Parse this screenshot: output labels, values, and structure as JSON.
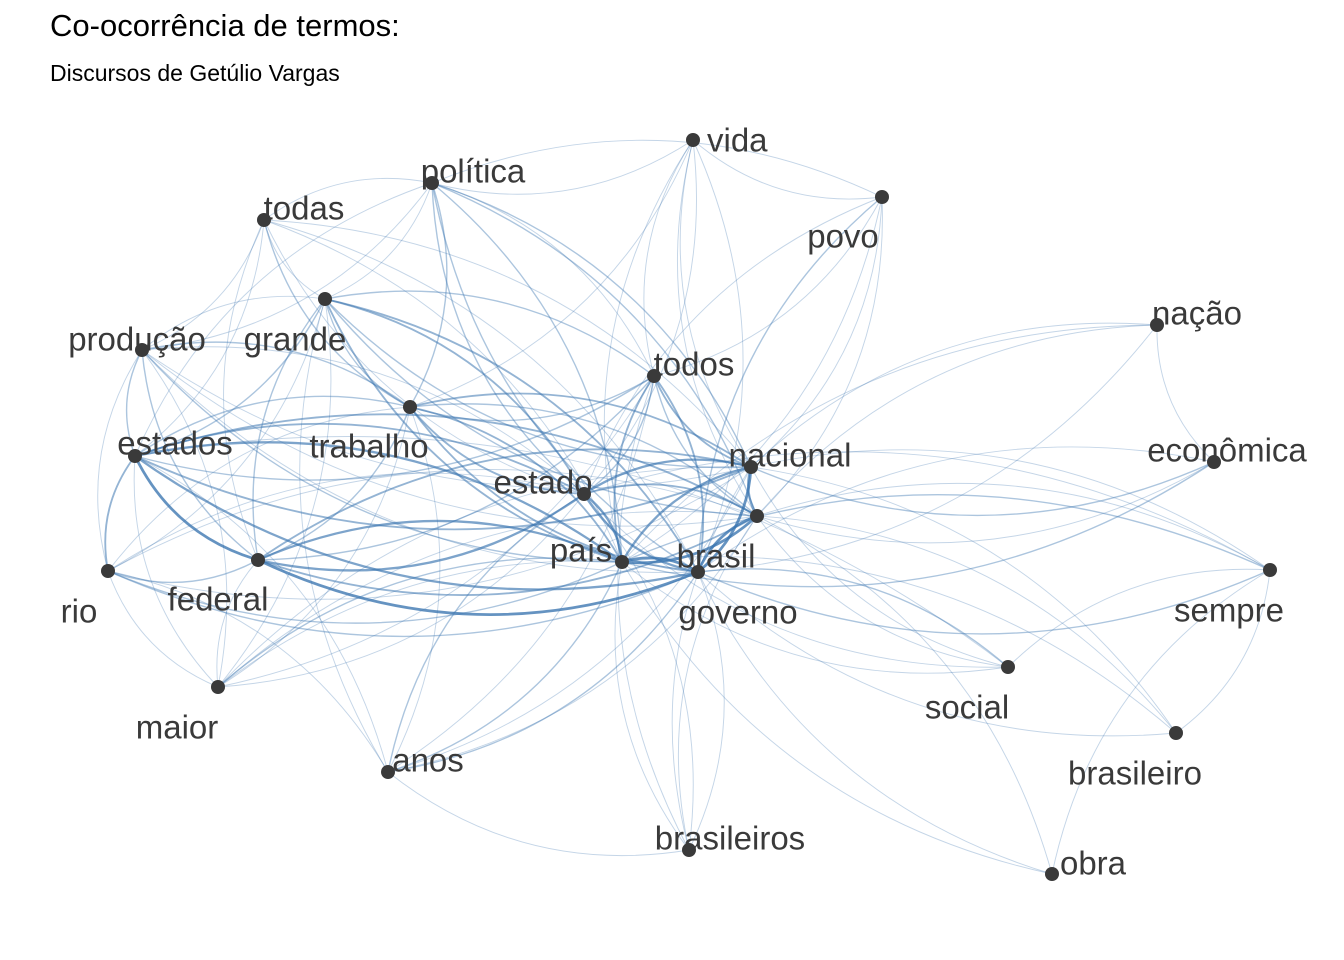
{
  "title": "Co-ocorrência de termos:",
  "subtitle": "Discursos de Getúlio Vargas",
  "edge_color": "#3a75b0",
  "node_color": "#3a3a3a",
  "nodes": [
    {
      "id": "vida",
      "label": "vida"
    },
    {
      "id": "povo",
      "label": "povo"
    },
    {
      "id": "politica",
      "label": "política"
    },
    {
      "id": "todas",
      "label": "todas"
    },
    {
      "id": "nacao",
      "label": "nação"
    },
    {
      "id": "producao",
      "label": "produção"
    },
    {
      "id": "grande",
      "label": "grande"
    },
    {
      "id": "todos",
      "label": "todos"
    },
    {
      "id": "estados",
      "label": "estados"
    },
    {
      "id": "trabalho",
      "label": "trabalho"
    },
    {
      "id": "nacional",
      "label": "nacional"
    },
    {
      "id": "economica",
      "label": "econômica"
    },
    {
      "id": "estado",
      "label": "estado"
    },
    {
      "id": "pais",
      "label": "país"
    },
    {
      "id": "brasil",
      "label": "brasil"
    },
    {
      "id": "rio",
      "label": "rio"
    },
    {
      "id": "federal",
      "label": "federal"
    },
    {
      "id": "governo",
      "label": "governo"
    },
    {
      "id": "sempre",
      "label": "sempre"
    },
    {
      "id": "social",
      "label": "social"
    },
    {
      "id": "maior",
      "label": "maior"
    },
    {
      "id": "anos",
      "label": "anos"
    },
    {
      "id": "brasileiro",
      "label": "brasileiro"
    },
    {
      "id": "brasileiros",
      "label": "brasileiros"
    },
    {
      "id": "obra",
      "label": "obra"
    }
  ],
  "edges": [
    [
      "estados",
      "federal",
      5
    ],
    [
      "estados",
      "pais",
      4
    ],
    [
      "estados",
      "governo",
      4
    ],
    [
      "estados",
      "estado",
      3
    ],
    [
      "estados",
      "nacional",
      3
    ],
    [
      "estados",
      "brasil",
      3
    ],
    [
      "estados",
      "rio",
      3
    ],
    [
      "estados",
      "trabalho",
      2
    ],
    [
      "estados",
      "grande",
      2
    ],
    [
      "estados",
      "producao",
      2
    ],
    [
      "estados",
      "todas",
      1
    ],
    [
      "estados",
      "politica",
      1
    ],
    [
      "estados",
      "maior",
      1
    ],
    [
      "estados",
      "anos",
      1
    ],
    [
      "estados",
      "todos",
      2
    ],
    [
      "estados",
      "social",
      1
    ],
    [
      "federal",
      "governo",
      5
    ],
    [
      "federal",
      "pais",
      4
    ],
    [
      "federal",
      "estado",
      4
    ],
    [
      "federal",
      "nacional",
      3
    ],
    [
      "federal",
      "brasil",
      3
    ],
    [
      "federal",
      "rio",
      2
    ],
    [
      "federal",
      "trabalho",
      2
    ],
    [
      "federal",
      "grande",
      2
    ],
    [
      "federal",
      "todos",
      2
    ],
    [
      "federal",
      "producao",
      2
    ],
    [
      "federal",
      "maior",
      1
    ],
    [
      "federal",
      "todas",
      1
    ],
    [
      "governo",
      "pais",
      5
    ],
    [
      "governo",
      "brasil",
      5
    ],
    [
      "governo",
      "nacional",
      5
    ],
    [
      "governo",
      "estado",
      4
    ],
    [
      "governo",
      "todos",
      3
    ],
    [
      "governo",
      "trabalho",
      3
    ],
    [
      "governo",
      "grande",
      3
    ],
    [
      "governo",
      "politica",
      2
    ],
    [
      "governo",
      "vida",
      1
    ],
    [
      "governo",
      "povo",
      2
    ],
    [
      "governo",
      "nacao",
      1
    ],
    [
      "governo",
      "economica",
      1
    ],
    [
      "governo",
      "sempre",
      2
    ],
    [
      "governo",
      "social",
      2
    ],
    [
      "governo",
      "brasileiro",
      1
    ],
    [
      "governo",
      "brasileiros",
      1
    ],
    [
      "governo",
      "obra",
      1
    ],
    [
      "governo",
      "anos",
      2
    ],
    [
      "governo",
      "maior",
      1
    ],
    [
      "governo",
      "rio",
      2
    ],
    [
      "governo",
      "todas",
      1
    ],
    [
      "governo",
      "producao",
      1
    ],
    [
      "pais",
      "brasil",
      5
    ],
    [
      "pais",
      "nacional",
      4
    ],
    [
      "pais",
      "estado",
      4
    ],
    [
      "pais",
      "todos",
      3
    ],
    [
      "pais",
      "trabalho",
      3
    ],
    [
      "pais",
      "grande",
      3
    ],
    [
      "pais",
      "politica",
      2
    ],
    [
      "pais",
      "vida",
      1
    ],
    [
      "pais",
      "povo",
      1
    ],
    [
      "pais",
      "nacao",
      1
    ],
    [
      "pais",
      "economica",
      2
    ],
    [
      "pais",
      "sempre",
      2
    ],
    [
      "pais",
      "social",
      1
    ],
    [
      "pais",
      "brasileiro",
      1
    ],
    [
      "pais",
      "brasileiros",
      1
    ],
    [
      "pais",
      "anos",
      2
    ],
    [
      "pais",
      "maior",
      2
    ],
    [
      "pais",
      "rio",
      2
    ],
    [
      "pais",
      "todas",
      1
    ],
    [
      "pais",
      "producao",
      2
    ],
    [
      "pais",
      "obra",
      1
    ],
    [
      "brasil",
      "nacional",
      4
    ],
    [
      "brasil",
      "estado",
      3
    ],
    [
      "brasil",
      "todos",
      2
    ],
    [
      "brasil",
      "trabalho",
      2
    ],
    [
      "brasil",
      "grande",
      2
    ],
    [
      "brasil",
      "politica",
      2
    ],
    [
      "brasil",
      "vida",
      1
    ],
    [
      "brasil",
      "povo",
      1
    ],
    [
      "brasil",
      "nacao",
      1
    ],
    [
      "brasil",
      "economica",
      1
    ],
    [
      "brasil",
      "sempre",
      1
    ],
    [
      "brasil",
      "social",
      1
    ],
    [
      "brasil",
      "brasileiro",
      1
    ],
    [
      "brasil",
      "brasileiros",
      1
    ],
    [
      "brasil",
      "anos",
      1
    ],
    [
      "brasil",
      "maior",
      1
    ],
    [
      "brasil",
      "obra",
      1
    ],
    [
      "brasil",
      "rio",
      1
    ],
    [
      "brasil",
      "producao",
      1
    ],
    [
      "nacional",
      "estado",
      4
    ],
    [
      "nacional",
      "todos",
      3
    ],
    [
      "nacional",
      "trabalho",
      3
    ],
    [
      "nacional",
      "grande",
      2
    ],
    [
      "nacional",
      "politica",
      2
    ],
    [
      "nacional",
      "vida",
      1
    ],
    [
      "nacional",
      "povo",
      1
    ],
    [
      "nacional",
      "nacao",
      1
    ],
    [
      "nacional",
      "economica",
      2
    ],
    [
      "nacional",
      "sempre",
      1
    ],
    [
      "nacional",
      "social",
      1
    ],
    [
      "nacional",
      "brasileiro",
      1
    ],
    [
      "nacional",
      "brasileiros",
      1
    ],
    [
      "nacional",
      "anos",
      1
    ],
    [
      "nacional",
      "maior",
      1
    ],
    [
      "nacional",
      "producao",
      1
    ],
    [
      "nacional",
      "todas",
      1
    ],
    [
      "nacional",
      "rio",
      1
    ],
    [
      "estado",
      "todos",
      2
    ],
    [
      "estado",
      "trabalho",
      3
    ],
    [
      "estado",
      "grande",
      3
    ],
    [
      "estado",
      "politica",
      2
    ],
    [
      "estado",
      "vida",
      1
    ],
    [
      "estado",
      "povo",
      1
    ],
    [
      "estado",
      "social",
      1
    ],
    [
      "estado",
      "sempre",
      1
    ],
    [
      "estado",
      "anos",
      2
    ],
    [
      "estado",
      "maior",
      1
    ],
    [
      "estado",
      "producao",
      1
    ],
    [
      "estado",
      "todas",
      1
    ],
    [
      "estado",
      "rio",
      1
    ],
    [
      "estado",
      "brasileiros",
      1
    ],
    [
      "trabalho",
      "todos",
      2
    ],
    [
      "trabalho",
      "grande",
      2
    ],
    [
      "trabalho",
      "politica",
      2
    ],
    [
      "trabalho",
      "todas",
      2
    ],
    [
      "trabalho",
      "producao",
      2
    ],
    [
      "trabalho",
      "anos",
      1
    ],
    [
      "trabalho",
      "rio",
      1
    ],
    [
      "trabalho",
      "maior",
      1
    ],
    [
      "trabalho",
      "vida",
      1
    ],
    [
      "grande",
      "todos",
      2
    ],
    [
      "grande",
      "politica",
      1
    ],
    [
      "grande",
      "todas",
      1
    ],
    [
      "grande",
      "producao",
      1
    ],
    [
      "grande",
      "maior",
      1
    ],
    [
      "grande",
      "anos",
      1
    ],
    [
      "grande",
      "rio",
      1
    ],
    [
      "todos",
      "politica",
      1
    ],
    [
      "todos",
      "vida",
      1
    ],
    [
      "todos",
      "povo",
      1
    ],
    [
      "todos",
      "anos",
      1
    ],
    [
      "todos",
      "brasileiros",
      1
    ],
    [
      "todos",
      "maior",
      1
    ],
    [
      "politica",
      "vida",
      1
    ],
    [
      "politica",
      "povo",
      1
    ],
    [
      "politica",
      "todas",
      1
    ],
    [
      "politica",
      "producao",
      1
    ],
    [
      "vida",
      "povo",
      1
    ],
    [
      "todas",
      "producao",
      1
    ],
    [
      "producao",
      "rio",
      1
    ],
    [
      "producao",
      "maior",
      1
    ],
    [
      "rio",
      "maior",
      1
    ],
    [
      "rio",
      "anos",
      1
    ],
    [
      "anos",
      "brasileiros",
      1
    ],
    [
      "social",
      "sempre",
      1
    ],
    [
      "brasileiro",
      "sempre",
      1
    ],
    [
      "obra",
      "sempre",
      1
    ],
    [
      "nacao",
      "economica",
      1
    ]
  ]
}
